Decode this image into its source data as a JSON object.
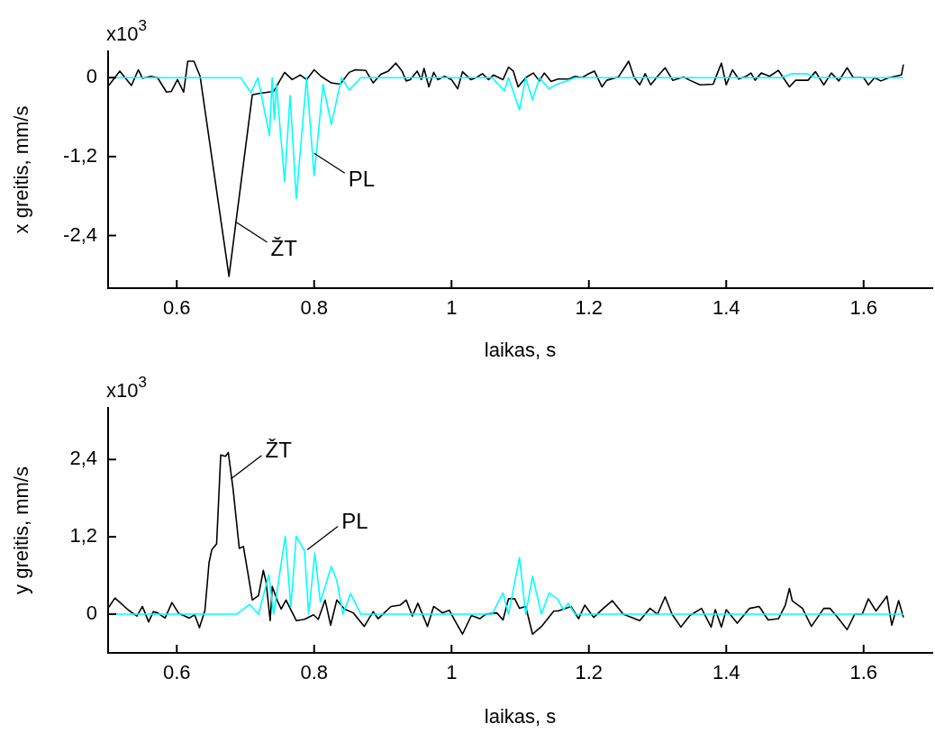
{
  "chart_data": [
    {
      "type": "line",
      "xlabel": "laikas, s",
      "ylabel": "x greitis, mm/s",
      "xlim": [
        0.5,
        1.7
      ],
      "xticks": [
        0.6,
        0.8,
        1,
        1.2,
        1.4,
        1.6
      ],
      "ylim": [
        -3.2,
        0.4
      ],
      "yticks": [
        {
          "value": -2.4,
          "label": "-2,4"
        },
        {
          "value": -1.2,
          "label": "-1,2"
        },
        0
      ],
      "grid": false,
      "legend": false,
      "marker": "none",
      "annotations": [
        "x10$^{3}$",
        {
          "text": "ŽT",
          "x": 0.687,
          "y": -2.2
        },
        {
          "text": "PL",
          "x": 0.8,
          "y": -1.15
        }
      ],
      "series": [
        {
          "color": "#00ffff",
          "x": [
            0.5,
            0.693,
            0.708,
            0.718,
            0.735,
            0.739,
            0.742,
            0.745,
            0.757,
            0.765,
            0.774,
            0.789,
            0.8,
            0.813,
            0.825,
            0.84,
            0.851,
            0.868,
            1.059,
            1.077,
            1.083,
            1.099,
            1.108,
            1.118,
            1.128,
            1.142,
            1.154,
            1.17,
            1.18,
            1.48,
            1.496,
            1.517,
            1.53,
            1.658
          ],
          "values": [
            0,
            0,
            -0.23,
            0,
            -0.88,
            0,
            -0.64,
            -0.1,
            -1.58,
            -0.27,
            -1.84,
            0,
            -1.49,
            -0.1,
            -0.71,
            0,
            -0.19,
            0,
            0,
            -0.2,
            0,
            -0.49,
            0,
            -0.34,
            0,
            -0.17,
            -0.1,
            -0.04,
            0,
            0,
            0.06,
            0.06,
            0,
            0
          ]
        },
        {
          "color": "#000000",
          "x": [
            0.501,
            0.517,
            0.534,
            0.544,
            0.55,
            0.562,
            0.572,
            0.585,
            0.592,
            0.601,
            0.61,
            0.616,
            0.625,
            0.634,
            0.676,
            0.71,
            0.72,
            0.741,
            0.757,
            0.768,
            0.78,
            0.789,
            0.8,
            0.81,
            0.825,
            0.838,
            0.851,
            0.86,
            0.875,
            0.886,
            0.897,
            0.908,
            0.919,
            0.928,
            0.934,
            0.94,
            0.95,
            0.956,
            0.96,
            0.967,
            0.974,
            0.98,
            0.99,
            1.0,
            1.009,
            1.016,
            1.028,
            1.036,
            1.045,
            1.054,
            1.061,
            1.075,
            1.083,
            1.09,
            1.097,
            1.108,
            1.119,
            1.128,
            1.135,
            1.145,
            1.155,
            1.171,
            1.18,
            1.19,
            1.198,
            1.208,
            1.219,
            1.226,
            1.243,
            1.258,
            1.266,
            1.274,
            1.282,
            1.29,
            1.3,
            1.311,
            1.322,
            1.338,
            1.347,
            1.362,
            1.381,
            1.388,
            1.393,
            1.4,
            1.409,
            1.418,
            1.429,
            1.436,
            1.442,
            1.451,
            1.463,
            1.476,
            1.492,
            1.501,
            1.519,
            1.53,
            1.542,
            1.553,
            1.564,
            1.576,
            1.585,
            1.6,
            1.607,
            1.616,
            1.625,
            1.637,
            1.655,
            1.658
          ],
          "values": [
            -0.12,
            0.1,
            -0.12,
            0.12,
            -0.01,
            0.02,
            0,
            -0.22,
            -0.21,
            -0.03,
            -0.22,
            0.25,
            0.25,
            0.02,
            -3.02,
            -0.26,
            -0.24,
            -0.21,
            0.08,
            -0.03,
            0.04,
            -0.03,
            0.12,
            0.02,
            -0.08,
            -0.1,
            0.08,
            0.12,
            0.11,
            -0.08,
            0.05,
            0.1,
            0.22,
            0.1,
            -0.05,
            -0.03,
            0.1,
            -0.03,
            0.14,
            -0.14,
            0.08,
            -0.03,
            0.02,
            -0.03,
            -0.17,
            0.09,
            -0.03,
            0,
            0.06,
            -0.03,
            0.04,
            -0.03,
            0.16,
            0.1,
            -0.14,
            0,
            0.07,
            -0.05,
            0.07,
            -0.06,
            -0.02,
            -0.02,
            0.02,
            0,
            0.05,
            0.1,
            -0.14,
            -0.04,
            0.01,
            0.25,
            0,
            -0.11,
            0.06,
            -0.11,
            0.02,
            0.15,
            -0.04,
            0.01,
            -0.04,
            -0.11,
            -0.1,
            0.09,
            0.22,
            -0.11,
            0.12,
            -0.02,
            0.02,
            0.07,
            -0.04,
            0.07,
            0.02,
            0.11,
            -0.14,
            -0.04,
            -0.04,
            0.09,
            -0.11,
            0.07,
            -0.05,
            0.15,
            0,
            0,
            -0.11,
            0,
            -0.05,
            0,
            0.04,
            0.2
          ]
        }
      ]
    },
    {
      "type": "line",
      "xlabel": "laikas, s",
      "ylabel": "y greitis, mm/s",
      "xlim": [
        0.5,
        1.7
      ],
      "xticks": [
        0.6,
        0.8,
        1,
        1.2,
        1.4,
        1.6
      ],
      "ylim": [
        -0.6,
        3.2
      ],
      "yticks": [
        0,
        {
          "value": 1.2,
          "label": "1,2"
        },
        {
          "value": 2.4,
          "label": "2,4"
        }
      ],
      "grid": false,
      "legend": false,
      "marker": "none",
      "annotations": [
        "x10$^{3}$",
        {
          "text": "ŽT",
          "x": 0.679,
          "y": 2.1
        },
        {
          "text": "PL",
          "x": 0.79,
          "y": 1.0
        }
      ],
      "series": [
        {
          "color": "#00ffff",
          "x": [
            0.5,
            0.687,
            0.706,
            0.719,
            0.734,
            0.741,
            0.747,
            0.758,
            0.766,
            0.774,
            0.786,
            0.792,
            0.801,
            0.809,
            0.825,
            0.833,
            0.842,
            0.853,
            0.868,
            1.059,
            1.075,
            1.083,
            1.099,
            1.108,
            1.118,
            1.131,
            1.142,
            1.154,
            1.163,
            1.17,
            1.18,
            1.658
          ],
          "values": [
            0,
            0,
            0.15,
            0,
            0.61,
            0,
            0.43,
            1.21,
            0.11,
            1.21,
            0.98,
            0,
            0.95,
            0.19,
            0.74,
            0.52,
            0,
            0.32,
            0,
            0,
            0.33,
            0,
            0.88,
            0,
            0.59,
            0,
            0.33,
            0.24,
            0.07,
            0.17,
            0,
            0
          ]
        },
        {
          "color": "#000000",
          "x": [
            0.501,
            0.51,
            0.53,
            0.542,
            0.55,
            0.559,
            0.566,
            0.572,
            0.583,
            0.593,
            0.603,
            0.618,
            0.626,
            0.633,
            0.641,
            0.647,
            0.651,
            0.658,
            0.664,
            0.671,
            0.675,
            0.682,
            0.691,
            0.697,
            0.704,
            0.71,
            0.719,
            0.726,
            0.73,
            0.736,
            0.739,
            0.746,
            0.752,
            0.759,
            0.774,
            0.786,
            0.799,
            0.806,
            0.816,
            0.824,
            0.833,
            0.844,
            0.857,
            0.873,
            0.886,
            0.893,
            0.912,
            0.925,
            0.934,
            0.943,
            0.951,
            0.965,
            0.974,
            0.987,
            0.997,
            1.004,
            1.016,
            1.029,
            1.041,
            1.05,
            1.066,
            1.075,
            1.083,
            1.092,
            1.099,
            1.108,
            1.118,
            1.131,
            1.149,
            1.155,
            1.174,
            1.185,
            1.194,
            1.207,
            1.221,
            1.234,
            1.25,
            1.274,
            1.289,
            1.3,
            1.311,
            1.321,
            1.334,
            1.347,
            1.364,
            1.378,
            1.384,
            1.393,
            1.4,
            1.416,
            1.434,
            1.448,
            1.461,
            1.476,
            1.486,
            1.492,
            1.496,
            1.511,
            1.524,
            1.542,
            1.551,
            1.56,
            1.576,
            1.587,
            1.598,
            1.607,
            1.618,
            1.634,
            1.641,
            1.651,
            1.658
          ],
          "values": [
            0.11,
            0.25,
            0.06,
            -0.03,
            0.12,
            -0.12,
            0.04,
            0.02,
            -0.06,
            0.18,
            0.01,
            -0.06,
            -0.01,
            -0.21,
            0.06,
            0.8,
            1.0,
            1.09,
            2.47,
            2.45,
            2.51,
            1.94,
            1.02,
            1.05,
            0.61,
            0.22,
            0.29,
            0.68,
            0.5,
            -0.1,
            0.43,
            0.22,
            0.08,
            0.22,
            -0.1,
            -0.08,
            -0.01,
            -0.08,
            0.22,
            -0.17,
            0.22,
            0.08,
            0.02,
            -0.19,
            0.04,
            -0.07,
            0.12,
            0.14,
            0.22,
            -0.03,
            0.17,
            -0.19,
            0.12,
            0.02,
            0.06,
            -0.08,
            -0.31,
            -0.02,
            -0.07,
            0,
            0.02,
            -0.09,
            0.24,
            0.24,
            0.09,
            0.12,
            -0.31,
            -0.19,
            0.05,
            0.05,
            0.12,
            -0.07,
            0.14,
            -0.05,
            0.09,
            0.21,
            0,
            -0.1,
            0.09,
            0,
            0.27,
            0,
            -0.2,
            -0.02,
            0.09,
            -0.2,
            0.07,
            -0.2,
            0.07,
            -0.14,
            0.09,
            0.12,
            -0.09,
            -0.07,
            0.14,
            0.4,
            0.21,
            0.09,
            -0.19,
            0.09,
            0.09,
            -0.02,
            -0.24,
            0,
            0,
            0.24,
            0.05,
            0.28,
            -0.17,
            0.21,
            -0.05
          ]
        }
      ]
    }
  ]
}
